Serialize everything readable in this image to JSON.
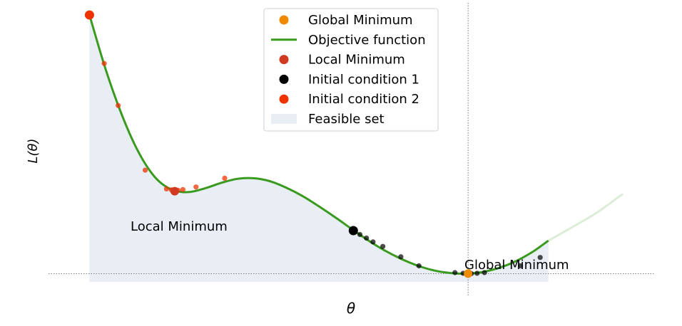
{
  "chart_data": {
    "type": "line",
    "title": "",
    "xlabel": "θ",
    "ylabel": "L(θ)",
    "grid": false,
    "legend_placement": "top-center",
    "colors": {
      "objective": "#3a9a1f",
      "feasible": "#e8eef4",
      "global_min": "#f08a00",
      "local_min": "#d03a20",
      "init1": "#000000",
      "init2": "#ee3300"
    },
    "legend": [
      {
        "label": "Global Minimum",
        "kind": "marker",
        "color": "#f08a00"
      },
      {
        "label": "Objective function",
        "kind": "line",
        "color": "#3a9a1f"
      },
      {
        "label": "Local Minimum",
        "kind": "marker",
        "color": "#d03a20"
      },
      {
        "label": "Initial condition 1",
        "kind": "marker",
        "color": "#000000"
      },
      {
        "label": "Initial condition 2",
        "kind": "marker",
        "color": "#ee3300"
      },
      {
        "label": "Feasible set",
        "kind": "patch",
        "color": "#e8eef4"
      }
    ],
    "annotations": {
      "local_min_label": "Local Minimum",
      "global_min_label": "Global Minimum"
    },
    "xlim": [
      -3.3,
      4.1
    ],
    "ylim": [
      -0.3,
      8.2
    ],
    "feasible_range": [
      -2.8,
      2.8
    ],
    "objective": {
      "x": [
        -2.8,
        -2.6,
        -2.4,
        -2.2,
        -2.0,
        -1.8,
        -1.6,
        -1.4,
        -1.2,
        -1.0,
        -0.8,
        -0.6,
        -0.4,
        -0.2,
        0.0,
        0.2,
        0.4,
        0.6,
        0.8,
        1.0,
        1.2,
        1.4,
        1.6,
        1.8,
        2.0,
        2.2,
        2.4,
        2.6,
        2.8
      ],
      "y": [
        8.0,
        6.3,
        4.88,
        3.75,
        2.98,
        2.6,
        2.52,
        2.63,
        2.8,
        2.93,
        2.95,
        2.86,
        2.66,
        2.4,
        2.08,
        1.74,
        1.38,
        1.03,
        0.72,
        0.46,
        0.25,
        0.1,
        0.02,
        0.0,
        0.05,
        0.18,
        0.38,
        0.66,
        1.02
      ]
    },
    "objective_extension": {
      "x": [
        2.8,
        3.1,
        3.4,
        3.7
      ],
      "y": [
        1.02,
        1.45,
        1.9,
        2.45
      ]
    },
    "global_minimum": {
      "x": 1.82,
      "y": 0.0
    },
    "local_minimum": {
      "x": -1.76,
      "y": 2.55
    },
    "initial_condition_1": {
      "start": {
        "x": 0.42,
        "y": 1.33
      },
      "path": [
        {
          "x": 0.5,
          "y": 1.21
        },
        {
          "x": 0.58,
          "y": 1.1
        },
        {
          "x": 0.66,
          "y": 0.98
        },
        {
          "x": 0.78,
          "y": 0.84
        },
        {
          "x": 1.0,
          "y": 0.52
        },
        {
          "x": 1.22,
          "y": 0.24
        },
        {
          "x": 1.66,
          "y": 0.03
        },
        {
          "x": 1.76,
          "y": 0.01
        },
        {
          "x": 1.86,
          "y": 0.0
        },
        {
          "x": 1.93,
          "y": 0.01
        },
        {
          "x": 2.02,
          "y": 0.03
        },
        {
          "x": 2.46,
          "y": 0.24
        },
        {
          "x": 2.7,
          "y": 0.5
        }
      ]
    },
    "initial_condition_2": {
      "start": {
        "x": -2.8,
        "y": 8.0
      },
      "path": [
        {
          "x": -3.0,
          "y": 9.6
        },
        {
          "x": -2.62,
          "y": 6.5
        },
        {
          "x": -2.45,
          "y": 5.2
        },
        {
          "x": -2.12,
          "y": 3.2
        },
        {
          "x": -1.86,
          "y": 2.62
        },
        {
          "x": -1.8,
          "y": 2.59
        },
        {
          "x": -1.72,
          "y": 2.58
        },
        {
          "x": -1.66,
          "y": 2.6
        },
        {
          "x": -1.5,
          "y": 2.68
        },
        {
          "x": -1.15,
          "y": 2.95
        }
      ]
    }
  }
}
